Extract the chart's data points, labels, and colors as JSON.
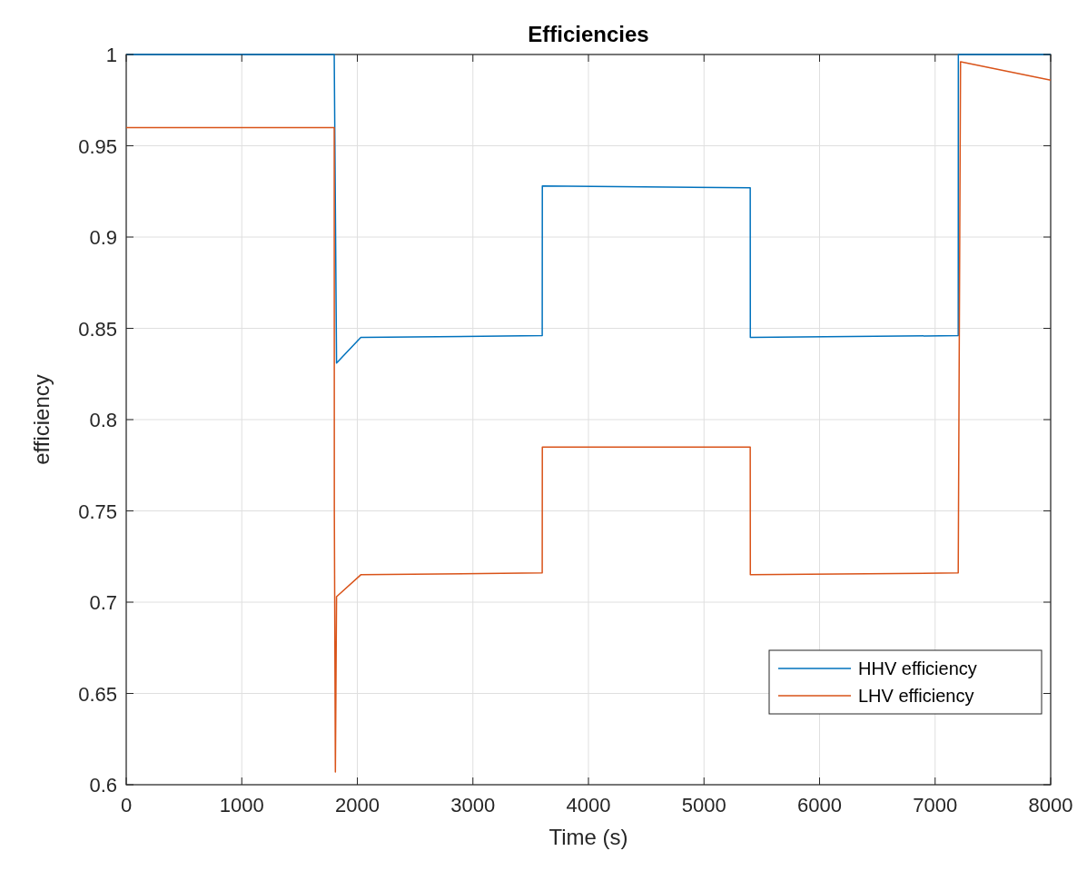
{
  "chart_data": {
    "type": "line",
    "title": "Efficiencies",
    "xlabel": "Time (s)",
    "ylabel": "efficiency",
    "xlim": [
      0,
      8000
    ],
    "ylim": [
      0.6,
      1
    ],
    "xticks": [
      0,
      1000,
      2000,
      3000,
      4000,
      5000,
      6000,
      7000,
      8000
    ],
    "yticks": [
      0.6,
      0.65,
      0.7,
      0.75,
      0.8,
      0.85,
      0.9,
      0.95,
      1
    ],
    "grid": true,
    "legend": "bottom right",
    "series": [
      {
        "name": "HHV efficiency",
        "color": "#0072bd",
        "x": [
          0,
          1800,
          1820,
          2030,
          3600,
          3601,
          5400,
          5401,
          7200,
          7201,
          8000
        ],
        "values": [
          1,
          1,
          0.831,
          0.845,
          0.846,
          0.928,
          0.927,
          0.845,
          0.846,
          1,
          1
        ]
      },
      {
        "name": "LHV efficiency",
        "color": "#d95319",
        "x": [
          0,
          1800,
          1801,
          1810,
          1820,
          2030,
          3600,
          3601,
          5400,
          5401,
          7200,
          7220,
          8000
        ],
        "values": [
          0.96,
          0.96,
          0.75,
          0.607,
          0.703,
          0.715,
          0.716,
          0.785,
          0.785,
          0.715,
          0.716,
          0.996,
          0.986
        ]
      }
    ]
  }
}
